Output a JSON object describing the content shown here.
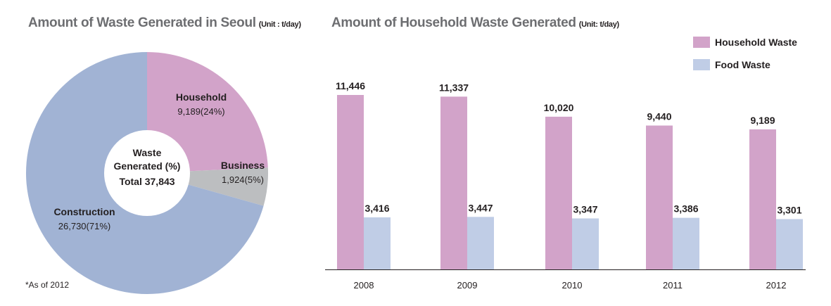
{
  "note": "*As of 2012",
  "chart_data": [
    {
      "type": "pie",
      "variant": "donut",
      "title": "Amount of Waste Generated in Seoul",
      "unit_label": "(Unit : t/day)",
      "center_text": [
        "Waste",
        "Generated (%)",
        "Total 37,843"
      ],
      "slices": [
        {
          "label": "Household",
          "value": 9189,
          "display": "9,189(24%)",
          "color": "#d2a3c9"
        },
        {
          "label": "Business",
          "value": 1924,
          "display": "1,924(5%)",
          "color": "#bcbec0"
        },
        {
          "label": "Construction",
          "value": 26730,
          "display": "26,730(71%)",
          "color": "#a1b3d4"
        }
      ]
    },
    {
      "type": "bar",
      "title": "Amount of Household Waste Generated",
      "unit_label": "(Unit: t/day)",
      "categories": [
        "2008",
        "2009",
        "2010",
        "2011",
        "2012"
      ],
      "series": [
        {
          "name": "Household Waste",
          "color": "#d2a3c9",
          "values": [
            11446,
            11337,
            10020,
            9440,
            9189
          ],
          "labels": [
            "11,446",
            "11,337",
            "10,020",
            "9,440",
            "9,189"
          ]
        },
        {
          "name": "Food Waste",
          "color": "#c0cde6",
          "values": [
            3416,
            3447,
            3347,
            3386,
            3301
          ],
          "labels": [
            "3,416",
            "3,447",
            "3,347",
            "3,386",
            "3,301"
          ]
        }
      ],
      "ylim": [
        0,
        14000
      ],
      "grid": false,
      "legend": "top-right"
    }
  ]
}
